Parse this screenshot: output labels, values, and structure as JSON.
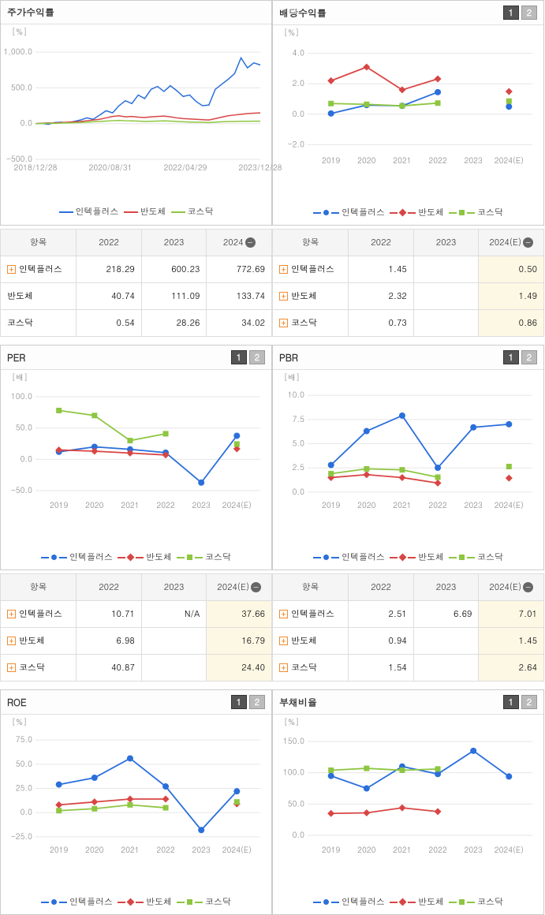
{
  "colors": {
    "series1": "#2a6fdb",
    "series2": "#d94545",
    "series3": "#8ec641",
    "grid": "#e6e6e6",
    "axis_text": "#888888",
    "est_bg": "#fdf8e4"
  },
  "legend_labels": [
    "인텍플러스",
    "반도체",
    "코스닥"
  ],
  "panels": {
    "stock_return": {
      "title": "주가수익률",
      "has_tabs": false,
      "unit": "[%]",
      "x_labels": [
        "2018/12/28",
        "2020/08/31",
        "2022/04/29",
        "2023/12/28"
      ],
      "y_ticks": [
        -500,
        0,
        500,
        1000
      ],
      "ylim": [
        -500,
        1100
      ],
      "series": [
        {
          "name": "인텍플러스",
          "color": "#2a6fdb",
          "marker": "line",
          "points": [
            0,
            5,
            -10,
            15,
            20,
            10,
            30,
            50,
            80,
            60,
            120,
            180,
            150,
            250,
            320,
            280,
            400,
            350,
            480,
            520,
            450,
            530,
            460,
            380,
            400,
            310,
            250,
            260,
            480,
            550,
            620,
            700,
            920,
            780,
            850,
            820
          ]
        },
        {
          "name": "반도체",
          "color": "#d94545",
          "marker": "line",
          "points": [
            0,
            5,
            10,
            8,
            15,
            20,
            25,
            30,
            40,
            50,
            60,
            80,
            100,
            110,
            95,
            100,
            90,
            85,
            95,
            100,
            105,
            95,
            80,
            70,
            65,
            60,
            55,
            50,
            70,
            90,
            110,
            120,
            130,
            140,
            145,
            150
          ]
        },
        {
          "name": "코스닥",
          "color": "#8ec641",
          "marker": "line",
          "points": [
            0,
            2,
            5,
            3,
            8,
            10,
            12,
            15,
            20,
            25,
            30,
            35,
            40,
            45,
            40,
            38,
            35,
            30,
            32,
            35,
            38,
            35,
            30,
            25,
            22,
            20,
            18,
            15,
            20,
            25,
            28,
            30,
            32,
            33,
            34,
            34
          ]
        }
      ]
    },
    "dividend": {
      "title": "배당수익률",
      "has_tabs": true,
      "unit": "[%]",
      "x_labels": [
        "2019",
        "2020",
        "2021",
        "2022",
        "2023",
        "2024(E)"
      ],
      "y_ticks": [
        -2,
        0,
        2,
        4
      ],
      "ylim": [
        -2.5,
        4.5
      ],
      "series": [
        {
          "name": "인텍플러스",
          "color": "#2a6fdb",
          "marker": "circle",
          "points": [
            0.05,
            0.6,
            0.55,
            1.45,
            null,
            0.5
          ],
          "est_disconnected": true
        },
        {
          "name": "반도체",
          "color": "#d94545",
          "marker": "diamond",
          "points": [
            2.2,
            3.1,
            1.6,
            2.32,
            null,
            1.49
          ],
          "est_disconnected": true
        },
        {
          "name": "코스닥",
          "color": "#8ec641",
          "marker": "square",
          "points": [
            0.7,
            0.65,
            0.55,
            0.73,
            null,
            0.86
          ],
          "est_disconnected": true
        }
      ]
    },
    "per": {
      "title": "PER",
      "has_tabs": true,
      "unit": "[배]",
      "x_labels": [
        "2019",
        "2020",
        "2021",
        "2022",
        "2023",
        "2024(E)"
      ],
      "y_ticks": [
        -50,
        0,
        50,
        100
      ],
      "ylim": [
        -60,
        110
      ],
      "series": [
        {
          "name": "인텍플러스",
          "color": "#2a6fdb",
          "marker": "circle",
          "points": [
            12,
            20,
            16,
            10.71,
            -37,
            37.66
          ]
        },
        {
          "name": "반도체",
          "color": "#d94545",
          "marker": "diamond",
          "points": [
            15,
            13,
            10,
            6.98,
            null,
            16.79
          ],
          "est_disconnected": true
        },
        {
          "name": "코스닥",
          "color": "#8ec641",
          "marker": "square",
          "points": [
            78,
            70,
            30,
            40.87,
            null,
            24.4
          ],
          "est_disconnected": true
        }
      ]
    },
    "pbr": {
      "title": "PBR",
      "has_tabs": true,
      "unit": "[배]",
      "x_labels": [
        "2019",
        "2020",
        "2021",
        "2022",
        "2023",
        "2024(E)"
      ],
      "y_ticks": [
        0,
        2.5,
        5,
        7.5,
        10
      ],
      "ylim": [
        -0.5,
        10.5
      ],
      "series": [
        {
          "name": "인텍플러스",
          "color": "#2a6fdb",
          "marker": "circle",
          "points": [
            2.8,
            6.3,
            7.9,
            2.51,
            6.69,
            7.01
          ]
        },
        {
          "name": "반도체",
          "color": "#d94545",
          "marker": "diamond",
          "points": [
            1.5,
            1.8,
            1.5,
            0.94,
            null,
            1.45
          ],
          "est_disconnected": true
        },
        {
          "name": "코스닥",
          "color": "#8ec641",
          "marker": "square",
          "points": [
            1.9,
            2.4,
            2.3,
            1.54,
            null,
            2.64
          ],
          "est_disconnected": true
        }
      ]
    },
    "roe": {
      "title": "ROE",
      "has_tabs": true,
      "unit": "[%]",
      "x_labels": [
        "2019",
        "2020",
        "2021",
        "2022",
        "2023",
        "2024(E)"
      ],
      "y_ticks": [
        -25,
        0,
        25,
        50,
        75
      ],
      "ylim": [
        -30,
        80
      ],
      "series": [
        {
          "name": "인텍플러스",
          "color": "#2a6fdb",
          "marker": "circle",
          "points": [
            29,
            36,
            56,
            27,
            -18,
            22
          ]
        },
        {
          "name": "반도체",
          "color": "#d94545",
          "marker": "diamond",
          "points": [
            8,
            11,
            14,
            14,
            null,
            9
          ],
          "est_disconnected": true
        },
        {
          "name": "코스닥",
          "color": "#8ec641",
          "marker": "square",
          "points": [
            2,
            4,
            8,
            5,
            null,
            11
          ],
          "est_disconnected": true
        }
      ]
    },
    "debt": {
      "title": "부채비율",
      "has_tabs": true,
      "unit": "[%]",
      "x_labels": [
        "2019",
        "2020",
        "2021",
        "2022",
        "2023",
        "2024(E)"
      ],
      "y_ticks": [
        0,
        50,
        100,
        150
      ],
      "ylim": [
        -10,
        160
      ],
      "series": [
        {
          "name": "인텍플러스",
          "color": "#2a6fdb",
          "marker": "circle",
          "points": [
            95,
            75,
            110,
            98,
            135,
            94
          ]
        },
        {
          "name": "반도체",
          "color": "#d94545",
          "marker": "diamond",
          "points": [
            35,
            36,
            44,
            38,
            null,
            null
          ],
          "est_disconnected": true
        },
        {
          "name": "코스닥",
          "color": "#8ec641",
          "marker": "square",
          "points": [
            104,
            107,
            104,
            106,
            null,
            null
          ],
          "est_disconnected": true
        }
      ]
    }
  },
  "tables": {
    "stock_return": {
      "header_item": "항목",
      "cols": [
        "2022",
        "2023",
        "2024"
      ],
      "col_est": [
        false,
        false,
        false
      ],
      "collapse_last": true,
      "rows": [
        {
          "label": "인텍플러스",
          "expand": true,
          "vals": [
            "218.29",
            "600.23",
            "772.69"
          ]
        },
        {
          "label": "반도체",
          "expand": false,
          "vals": [
            "40.74",
            "111.09",
            "133.74"
          ]
        },
        {
          "label": "코스닥",
          "expand": false,
          "vals": [
            "0.54",
            "28.26",
            "34.02"
          ]
        }
      ]
    },
    "dividend": {
      "header_item": "항목",
      "cols": [
        "2022",
        "2023",
        "2024(E)"
      ],
      "col_est": [
        false,
        false,
        true
      ],
      "collapse_last": true,
      "rows": [
        {
          "label": "인텍플러스",
          "expand": true,
          "vals": [
            "1.45",
            "",
            "0.50"
          ]
        },
        {
          "label": "반도체",
          "expand": true,
          "vals": [
            "2.32",
            "",
            "1.49"
          ]
        },
        {
          "label": "코스닥",
          "expand": true,
          "vals": [
            "0.73",
            "",
            "0.86"
          ]
        }
      ]
    },
    "per": {
      "header_item": "항목",
      "cols": [
        "2022",
        "2023",
        "2024(E)"
      ],
      "col_est": [
        false,
        false,
        true
      ],
      "collapse_last": true,
      "rows": [
        {
          "label": "인텍플러스",
          "expand": true,
          "vals": [
            "10.71",
            "N/A",
            "37.66"
          ]
        },
        {
          "label": "반도체",
          "expand": true,
          "vals": [
            "6.98",
            "",
            "16.79"
          ]
        },
        {
          "label": "코스닥",
          "expand": true,
          "vals": [
            "40.87",
            "",
            "24.40"
          ]
        }
      ]
    },
    "pbr": {
      "header_item": "항목",
      "cols": [
        "2022",
        "2023",
        "2024(E)"
      ],
      "col_est": [
        false,
        false,
        true
      ],
      "collapse_last": true,
      "rows": [
        {
          "label": "인텍플러스",
          "expand": true,
          "vals": [
            "2.51",
            "6.69",
            "7.01"
          ]
        },
        {
          "label": "반도체",
          "expand": true,
          "vals": [
            "0.94",
            "",
            "1.45"
          ]
        },
        {
          "label": "코스닥",
          "expand": true,
          "vals": [
            "1.54",
            "",
            "2.64"
          ]
        }
      ]
    }
  }
}
